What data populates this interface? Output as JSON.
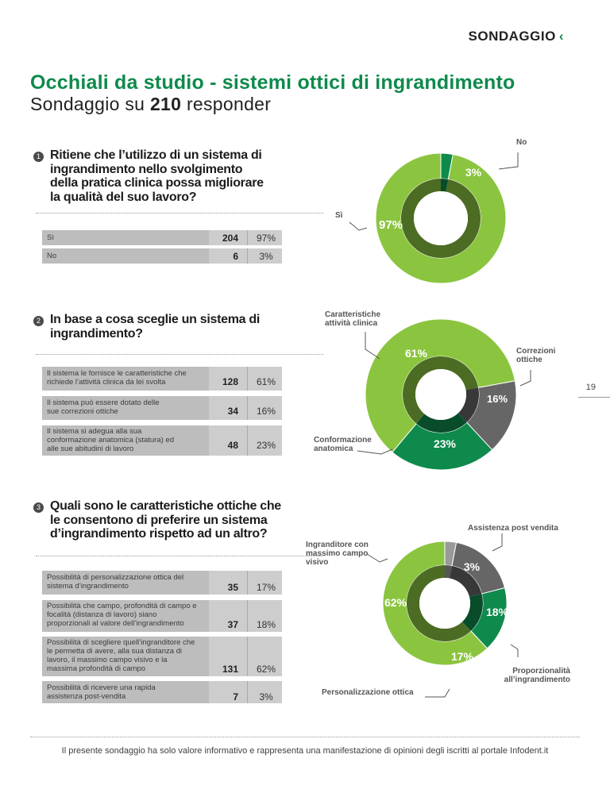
{
  "header": {
    "section": "SONDAGGIO",
    "chevron": "‹"
  },
  "title": "Occhiali da studio - sistemi ottici di ingrandimento",
  "subtitle": {
    "prefix": "Sondaggio su ",
    "count": "210",
    "suffix": " responder"
  },
  "colors": {
    "green_light": "#8bc53f",
    "green_dark": "#0e8a4c",
    "gray_dark": "#666666",
    "gray_mid": "#9a9a9a",
    "inner_dark": "#3a6a2e"
  },
  "questions": [
    {
      "number": "1",
      "text": "Ritiene che l’utilizzo di un sistema di ingrandimento nello svolgimento della pratica clinica possa migliorare la qualità del suo lavoro?",
      "rows": [
        {
          "label": "Sì",
          "count": "204",
          "pct": "97%"
        },
        {
          "label": "No",
          "count": "6",
          "pct": "3%"
        }
      ],
      "callouts": {
        "no": "No",
        "si": "Sì"
      }
    },
    {
      "number": "2",
      "text": "In base a cosa sceglie un sistema di ingrandimento?",
      "rows": [
        {
          "label": "Il sistema le fornisce le caratteristiche che richiede l’attività clinica da lei svolta",
          "count": "128",
          "pct": "61%"
        },
        {
          "label": "Il sistema può essere dotato delle sue correzioni ottiche",
          "count": "34",
          "pct": "16%"
        },
        {
          "label": "Il sistema si adegua alla sua conformazione anatomica (statura) ed alle sue abitudini di lavoro",
          "count": "48",
          "pct": "23%"
        }
      ],
      "callouts": {
        "caratteristiche": "Caratteristiche attività clinica",
        "correzioni": "Correzioni ottiche",
        "conformazione": "Conformazione anatomica"
      }
    },
    {
      "number": "3",
      "text": "Quali sono le caratteristiche ottiche che le consentono di preferire un sistema d’ingrandimento rispetto ad un altro?",
      "rows": [
        {
          "label": "Possibilità di personalizzazione ottica del sistema d’ingrandimento",
          "count": "35",
          "pct": "17%"
        },
        {
          "label": "Possibilità che campo, profondità di campo e focalità (distanza di lavoro) siano proporzionali al valore dell’ingrandimento",
          "count": "37",
          "pct": "18%"
        },
        {
          "label": "Possibilità di scegliere quell’ingranditore che le permetta di avere, alla sua distanza di lavoro, il massimo campo visivo e la massima profondità di campo",
          "count": "131",
          "pct": "62%"
        },
        {
          "label": "Possibilità di ricevere una rapida assistenza post-vendita",
          "count": "7",
          "pct": "3%"
        }
      ],
      "callouts": {
        "assistenza": "Assistenza post vendita",
        "ingranditore": "Ingranditore con massimo campo visivo",
        "proporzionalita": "Proporzionalità all’ingrandimento",
        "personalizzazione": "Personalizzazione ottica"
      }
    }
  ],
  "chart_data": [
    {
      "type": "pie",
      "slices": [
        {
          "label": "Sì",
          "value": 97
        },
        {
          "label": "No",
          "value": 3
        }
      ]
    },
    {
      "type": "pie",
      "slices": [
        {
          "label": "Caratteristiche attività clinica",
          "value": 61
        },
        {
          "label": "Correzioni ottiche",
          "value": 16
        },
        {
          "label": "Conformazione anatomica",
          "value": 23
        }
      ]
    },
    {
      "type": "pie",
      "slices": [
        {
          "label": "Ingranditore con massimo campo visivo",
          "value": 62
        },
        {
          "label": "Assistenza post vendita",
          "value": 3
        },
        {
          "label": "Proporzionalità all’ingrandimento",
          "value": 18
        },
        {
          "label": "Personalizzazione ottica",
          "value": 17
        }
      ]
    }
  ],
  "page_number": "19",
  "footer": "Il presente sondaggio ha solo valore informativo e rappresenta una manifestazione di opinioni degli iscritti al portale Infodent.it"
}
